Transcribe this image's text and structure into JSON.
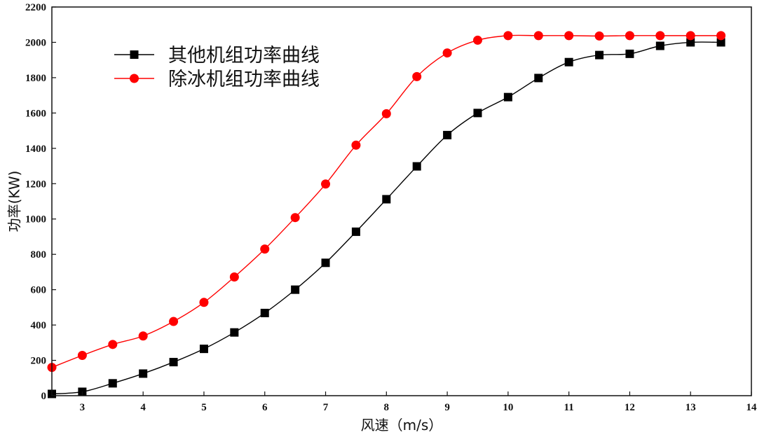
{
  "chart_data": {
    "type": "line",
    "title": "",
    "xlabel": "风速（m/s）",
    "ylabel": "功率(KW)",
    "xlim": [
      2.5,
      14
    ],
    "ylim": [
      0,
      2200
    ],
    "xticks": [
      3,
      4,
      5,
      6,
      7,
      8,
      9,
      10,
      11,
      12,
      13,
      14
    ],
    "yticks": [
      0,
      200,
      400,
      600,
      800,
      1000,
      1200,
      1400,
      1600,
      1800,
      2000,
      2200
    ],
    "grid": false,
    "legend_position": "top-left",
    "x": [
      2.5,
      3,
      3.5,
      4,
      4.5,
      5,
      5.5,
      6,
      6.5,
      7,
      7.5,
      8,
      8.5,
      9,
      9.5,
      10,
      10.5,
      11,
      11.5,
      12,
      12.5,
      13,
      13.5
    ],
    "series": [
      {
        "name": "其他机组功率曲线",
        "color": "#000000",
        "marker": "square",
        "values": [
          10,
          22,
          70,
          125,
          190,
          265,
          358,
          468,
          600,
          752,
          928,
          1112,
          1298,
          1475,
          1600,
          1690,
          1798,
          1888,
          1928,
          1935,
          1980,
          2000,
          2000
        ]
      },
      {
        "name": "除冰机组功率曲线",
        "color": "#ff0000",
        "marker": "circle",
        "values": [
          160,
          228,
          290,
          338,
          420,
          528,
          672,
          830,
          1008,
          1198,
          1418,
          1596,
          1806,
          1940,
          2012,
          2038,
          2038,
          2038,
          2036,
          2038,
          2038,
          2038,
          2038
        ]
      }
    ]
  }
}
